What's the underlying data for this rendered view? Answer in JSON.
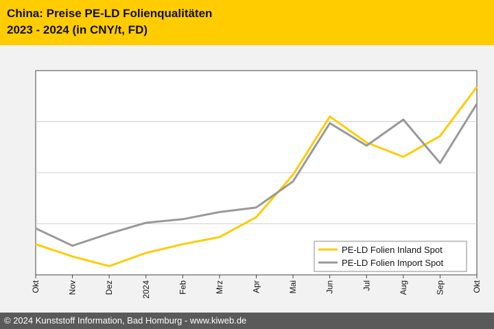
{
  "header": {
    "title_line1": "China: Preise PE-LD Folienqualitäten",
    "title_line2": "2023 - 2024 (in CNY/t, FD)"
  },
  "footer": {
    "copyright": "© 2024 Kunststoff Information, Bad Homburg - www.kiweb.de"
  },
  "colors": {
    "inland": "#ffcc00",
    "import": "#999999",
    "grid": "#d0d0d0",
    "axis": "#444444",
    "plot_bg": "#ffffff"
  },
  "chart_data": {
    "type": "line",
    "categories": [
      "Okt",
      "Nov",
      "Dez",
      "2024",
      "Feb",
      "Mrz",
      "Apr",
      "Mai",
      "Jun",
      "Jul",
      "Aug",
      "Sep",
      "Okt"
    ],
    "ylim": [
      0,
      4
    ],
    "grid": true,
    "legend_position": "bottom-right",
    "series": [
      {
        "name": "PE-LD Folien Inland Spot",
        "color_key": "inland",
        "values": [
          0.6,
          0.36,
          0.17,
          0.43,
          0.6,
          0.74,
          1.13,
          1.96,
          3.1,
          2.59,
          2.31,
          2.72,
          3.68
        ]
      },
      {
        "name": "PE-LD Folien Import Spot",
        "color_key": "import",
        "values": [
          0.91,
          0.57,
          0.81,
          1.02,
          1.09,
          1.23,
          1.32,
          1.83,
          2.97,
          2.53,
          3.04,
          2.19,
          3.35
        ]
      }
    ]
  }
}
